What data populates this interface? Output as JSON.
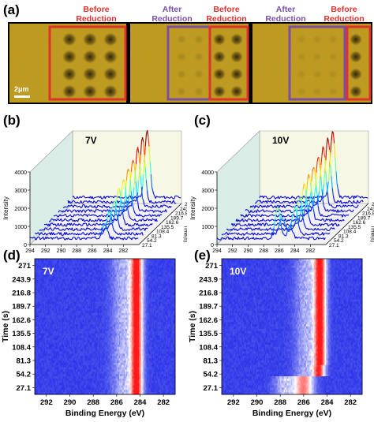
{
  "panel_a": {
    "letter": "(a)",
    "header_1": [
      "Before",
      "Reduction"
    ],
    "header_2": [
      "After",
      "Reduction"
    ],
    "header_3": [
      "Before",
      "Reduction"
    ],
    "header_4": [
      "After",
      "Reduction"
    ],
    "header_5": [
      "Before",
      "Reduction"
    ],
    "scalebar_label": "2μm",
    "colors": {
      "before": "#e0312d",
      "after": "#7b4fa8",
      "substrate": "#c79a1c"
    }
  },
  "chart_data": [
    {
      "id": "b",
      "letter": "(b)",
      "type": "line",
      "title": "7V",
      "xlabel": "Binding Energy (eV)",
      "ylabel": "Intensity",
      "zlabel": "Time(s)",
      "x_ticks": [
        "294",
        "292",
        "290",
        "288",
        "286",
        "284",
        "282"
      ],
      "y_ticks": [
        "0",
        "1000",
        "2000",
        "3000",
        "4000"
      ],
      "z_ticks": [
        "27.1",
        "54.2",
        "81.3",
        "108.4",
        "135.5",
        "162.6",
        "189.7",
        "216.8",
        "243.9",
        "271.0"
      ],
      "xlim": [
        294,
        280
      ],
      "ylim": [
        0,
        4000
      ],
      "series": {
        "peak_eV": 284.4,
        "peak_heights": [
          900,
          1200,
          1600,
          2000,
          2300,
          2600,
          2900,
          3200,
          3500,
          3700
        ]
      }
    },
    {
      "id": "c",
      "letter": "(c)",
      "type": "line",
      "title": "10V",
      "xlabel": "Binding Energy (eV)",
      "ylabel": "Intensity",
      "zlabel": "Time(s)",
      "x_ticks": [
        "294",
        "292",
        "290",
        "288",
        "286",
        "284",
        "282"
      ],
      "y_ticks": [
        "0",
        "1000",
        "2000",
        "3000",
        "4000"
      ],
      "z_ticks": [
        "27.1",
        "54.2",
        "81.3",
        "108.4",
        "135.5",
        "162.6",
        "189.7",
        "216.8",
        "243.9",
        "271.0"
      ],
      "xlim": [
        294,
        280
      ],
      "ylim": [
        0,
        4000
      ],
      "series": {
        "peak_eV": 284.6,
        "side_peak_eV": 286.2,
        "peak_heights": [
          700,
          1500,
          1800,
          2200,
          2500,
          2700,
          3000,
          3300,
          3500,
          3600
        ],
        "side_heights": [
          1700,
          900,
          0,
          0,
          0,
          0,
          0,
          0,
          0,
          0
        ]
      }
    },
    {
      "id": "d",
      "letter": "(d)",
      "type": "heatmap",
      "title": "7V",
      "xlabel": "Binding Energy (eV)",
      "ylabel": "Time (s)",
      "x_ticks": [
        "292",
        "290",
        "288",
        "286",
        "284",
        "282"
      ],
      "y_ticks": [
        "271",
        "243.9",
        "216.8",
        "189.7",
        "162.6",
        "135.5",
        "108.4",
        "81.3",
        "54.2",
        "27.1"
      ],
      "xlim": [
        293,
        281
      ],
      "series": {
        "peak_eV": 284.3,
        "peak_width_eV": 0.9
      }
    },
    {
      "id": "e",
      "letter": "(e)",
      "type": "heatmap",
      "title": "10V",
      "xlabel": "Binding Energy (eV)",
      "ylabel": "Time (s)",
      "x_ticks": [
        "292",
        "290",
        "288",
        "286",
        "284",
        "282"
      ],
      "y_ticks": [
        "271",
        "243.9",
        "216.8",
        "189.7",
        "162.6",
        "135.5",
        "108.4",
        "81.3",
        "54.2",
        "27.1"
      ],
      "xlim": [
        293,
        281
      ],
      "series": {
        "peak_eV": 284.6,
        "peak_width_eV": 0.9,
        "early_peak_eV": 286.0
      }
    }
  ]
}
